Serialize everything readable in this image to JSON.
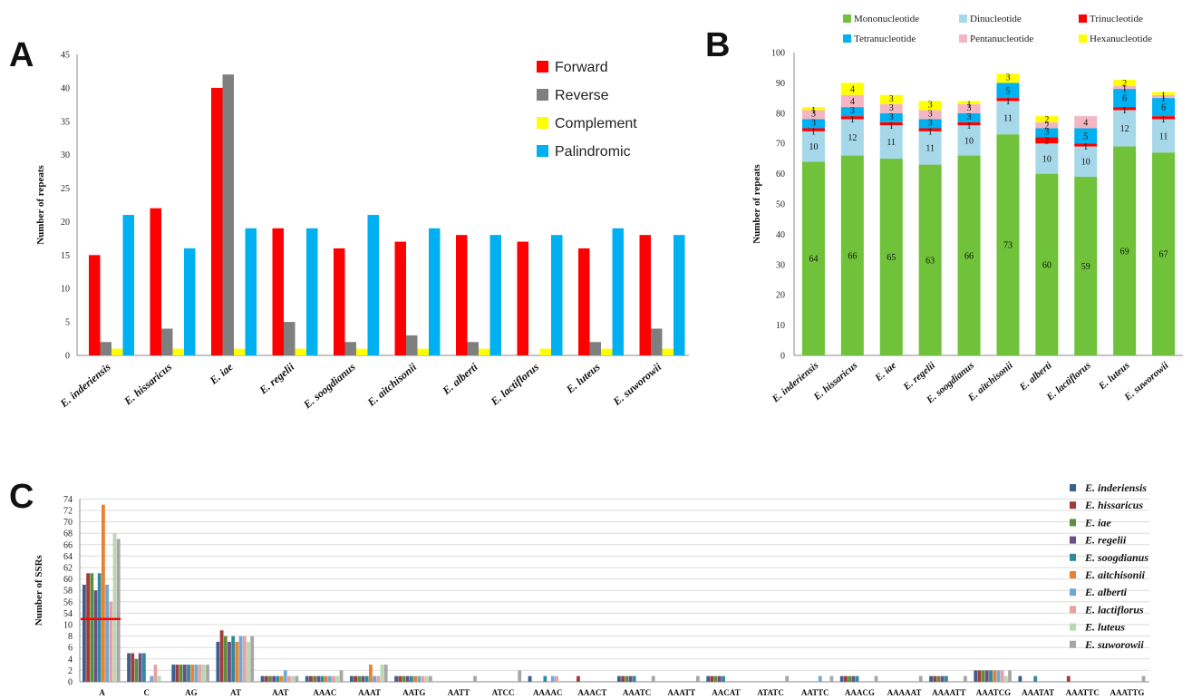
{
  "panels": {
    "a": "A",
    "b": "B",
    "c": "C"
  },
  "chart_data": [
    {
      "type": "bar",
      "categories": [
        "E. inderiensis",
        "E. hissaricus",
        "E. iae",
        "E. regelii",
        "E. soogdianus",
        "E. aitchisonii",
        "E. alberti",
        "E. lactiflorus",
        "E. luteus",
        "E. suworowii"
      ],
      "ylabel": "Number of repeats",
      "ylim": [
        0,
        45
      ],
      "yticks": [
        0,
        5,
        10,
        15,
        20,
        25,
        30,
        35,
        40,
        45
      ],
      "legend_position": "top-right",
      "series": [
        {
          "name": "Forward",
          "color": "#ff0000",
          "values": [
            15,
            22,
            40,
            19,
            16,
            17,
            18,
            17,
            16,
            18
          ]
        },
        {
          "name": "Reverse",
          "color": "#7f7f7f",
          "values": [
            2,
            4,
            42,
            5,
            2,
            3,
            2,
            0,
            2,
            4
          ]
        },
        {
          "name": "Complement",
          "color": "#ffff00",
          "values": [
            1,
            1,
            1,
            1,
            1,
            1,
            1,
            1,
            1,
            1
          ]
        },
        {
          "name": "Palindromic",
          "color": "#00b0f0",
          "values": [
            21,
            16,
            19,
            19,
            21,
            19,
            18,
            18,
            19,
            18
          ]
        }
      ]
    },
    {
      "type": "bar",
      "stacked": true,
      "categories": [
        "E. inderiensis",
        "E. hissaricus",
        "E. iae",
        "E. regelii",
        "E. soogdianus",
        "E. aitchisonii",
        "E. alberti",
        "E. lactiflorus",
        "E. luteus",
        "E. suworowii"
      ],
      "ylabel": "Number of repeats",
      "ylim": [
        0,
        100
      ],
      "yticks": [
        0,
        10,
        20,
        30,
        40,
        50,
        60,
        70,
        80,
        90,
        100
      ],
      "legend_position": "top",
      "series": [
        {
          "name": "Mononucleotide",
          "color": "#70c23a",
          "values": [
            64,
            66,
            65,
            63,
            66,
            73,
            60,
            59,
            69,
            67
          ]
        },
        {
          "name": "Dinucleotide",
          "color": "#a6d8ea",
          "values": [
            10,
            12,
            11,
            11,
            10,
            11,
            10,
            10,
            12,
            11
          ]
        },
        {
          "name": "Trinucleotide",
          "color": "#ff0000",
          "values": [
            1,
            1,
            1,
            1,
            1,
            1,
            2,
            1,
            1,
            1
          ]
        },
        {
          "name": "Tetranucleotide",
          "color": "#00b0f0",
          "values": [
            3,
            3,
            3,
            3,
            3,
            5,
            3,
            5,
            6,
            6
          ]
        },
        {
          "name": "Pentanucleotide",
          "color": "#f4b6c2",
          "values": [
            3,
            4,
            3,
            3,
            3,
            0,
            2,
            4,
            1,
            1
          ]
        },
        {
          "name": "Hexanucleotide",
          "color": "#ffff00",
          "values": [
            1,
            4,
            3,
            3,
            1,
            3,
            2,
            0,
            2,
            1
          ]
        }
      ]
    },
    {
      "type": "bar",
      "categories": [
        "A",
        "C",
        "AG",
        "AT",
        "AAT",
        "AAAC",
        "AAAT",
        "AATG",
        "AATT",
        "ATCC",
        "AAAAC",
        "AAACT",
        "AAATC",
        "AAATT",
        "AACAT",
        "ATATC",
        "AATTC",
        "AAACG",
        "AAAAAT",
        "AAAATT",
        "AAATCG",
        "AAATAT",
        "AAATTC",
        "AAATTG"
      ],
      "ylabel": "Number of SSRs",
      "ytick_labels": [
        "0",
        "2",
        "4",
        "6",
        "8",
        "10",
        "54",
        "56",
        "58",
        "60",
        "62",
        "64",
        "66",
        "68",
        "70",
        "72",
        "74"
      ],
      "axis_break": [
        10,
        54
      ],
      "legend_position": "right",
      "series": [
        {
          "name": "E. inderiensis",
          "color": "#3b5f8f",
          "values": [
            59,
            5,
            3,
            7,
            1,
            1,
            1,
            1,
            0,
            0,
            1,
            0,
            1,
            0,
            1,
            0,
            0,
            1,
            0,
            1,
            2,
            1,
            0,
            0
          ]
        },
        {
          "name": "E. hissaricus",
          "color": "#a33b3b",
          "values": [
            61,
            5,
            3,
            9,
            1,
            1,
            1,
            1,
            0,
            0,
            0,
            1,
            1,
            0,
            1,
            0,
            0,
            1,
            0,
            1,
            2,
            0,
            1,
            0
          ]
        },
        {
          "name": "E. iae",
          "color": "#5b8f3b",
          "values": [
            61,
            4,
            3,
            8,
            1,
            1,
            1,
            1,
            0,
            0,
            0,
            0,
            1,
            0,
            1,
            0,
            0,
            1,
            0,
            1,
            2,
            0,
            0,
            0
          ]
        },
        {
          "name": "E. regelii",
          "color": "#6a4f8a",
          "values": [
            58,
            5,
            3,
            7,
            1,
            1,
            1,
            1,
            0,
            0,
            0,
            0,
            1,
            0,
            1,
            0,
            0,
            1,
            0,
            1,
            2,
            0,
            0,
            0
          ]
        },
        {
          "name": "E. soogdianus",
          "color": "#2f8a9a",
          "values": [
            61,
            5,
            3,
            8,
            1,
            1,
            1,
            1,
            0,
            0,
            1,
            0,
            1,
            0,
            1,
            0,
            0,
            1,
            0,
            1,
            2,
            1,
            0,
            0
          ]
        },
        {
          "name": "E. aitchisonii",
          "color": "#e8822e",
          "values": [
            73,
            0,
            3,
            7,
            1,
            1,
            3,
            1,
            0,
            0,
            0,
            0,
            0,
            0,
            0,
            0,
            0,
            0,
            0,
            0,
            2,
            0,
            0,
            0
          ]
        },
        {
          "name": "E. alberti",
          "color": "#6fa8d6",
          "values": [
            59,
            1,
            3,
            8,
            2,
            1,
            1,
            1,
            0,
            0,
            1,
            0,
            0,
            0,
            0,
            0,
            1,
            0,
            0,
            0,
            2,
            0,
            0,
            0
          ]
        },
        {
          "name": "E. lactiflorus",
          "color": "#e8a0a0",
          "values": [
            56,
            3,
            3,
            8,
            1,
            1,
            1,
            1,
            0,
            0,
            1,
            0,
            0,
            0,
            0,
            0,
            0,
            0,
            0,
            0,
            2,
            0,
            0,
            0
          ]
        },
        {
          "name": "E. luteus",
          "color": "#b8d8b0",
          "values": [
            68,
            1,
            3,
            7,
            1,
            1,
            3,
            1,
            0,
            0,
            0,
            0,
            0,
            0,
            0,
            0,
            0,
            0,
            0,
            0,
            1,
            0,
            0,
            0
          ]
        },
        {
          "name": "E. suworowii",
          "color": "#a6a6a6",
          "values": [
            67,
            0,
            3,
            8,
            1,
            2,
            3,
            1,
            1,
            2,
            0,
            0,
            1,
            1,
            0,
            1,
            1,
            1,
            1,
            1,
            2,
            0,
            0,
            1
          ]
        }
      ]
    }
  ]
}
